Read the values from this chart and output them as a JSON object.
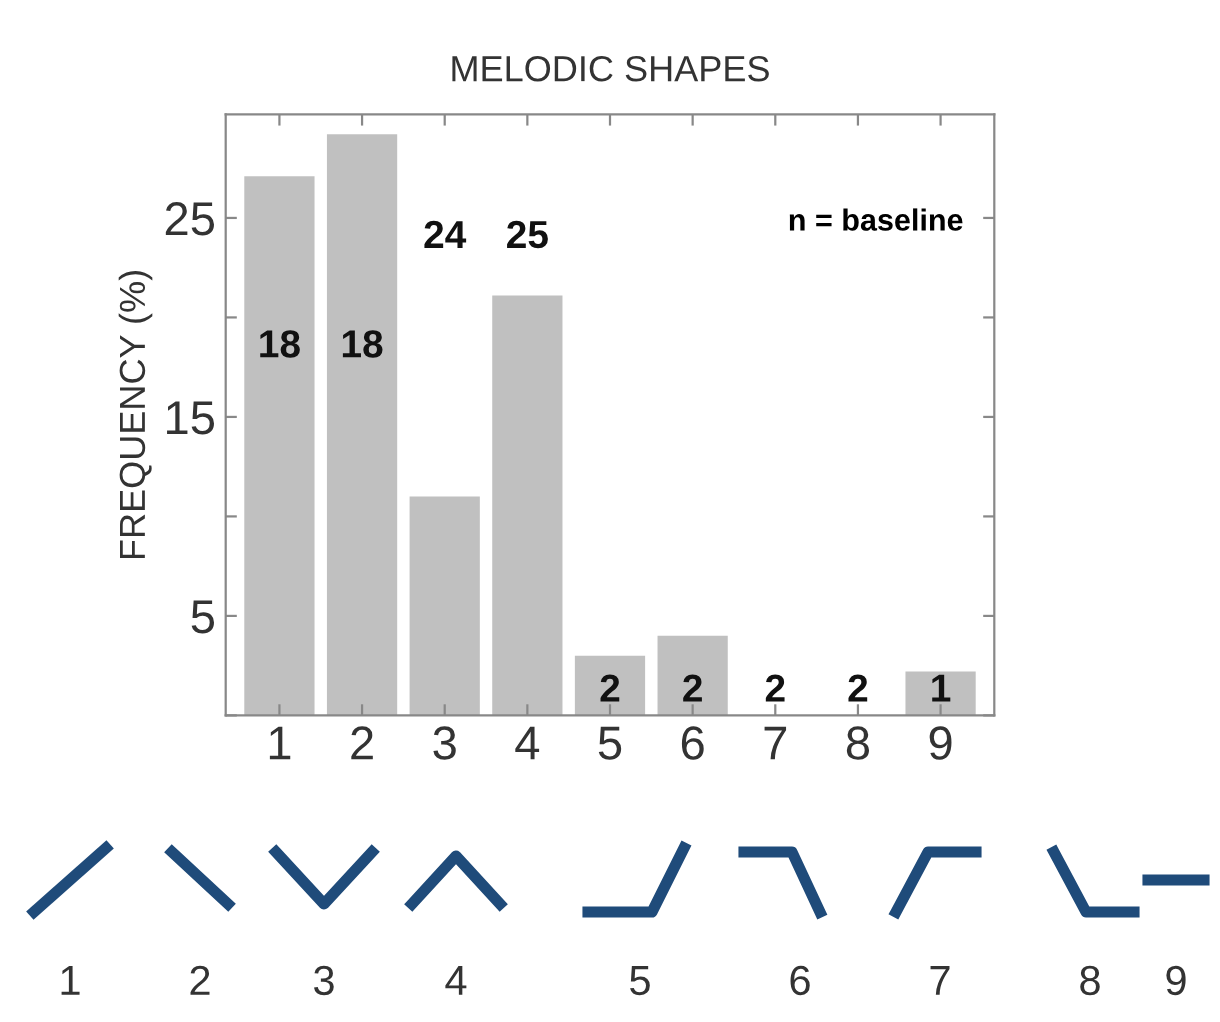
{
  "chart_data": {
    "type": "bar",
    "title": "MELODIC SHAPES",
    "ylabel": "FREQUENCY (%)",
    "categories": [
      "1",
      "2",
      "3",
      "4",
      "5",
      "6",
      "7",
      "8",
      "9"
    ],
    "values": [
      27.1,
      29.2,
      11,
      21.1,
      3,
      4,
      0,
      0,
      2.2
    ],
    "color": "#c0c0c0",
    "ylim": [
      0,
      30.2
    ],
    "yticks": [
      {
        "value": 0,
        "label": null
      },
      5,
      {
        "value": 10,
        "label": null
      },
      15,
      {
        "value": 20,
        "label": null
      },
      25
    ],
    "grid": false,
    "legend": false,
    "annotations": [
      "18",
      "18",
      "24",
      "25",
      "2",
      "2",
      "2",
      "2",
      "1",
      "n = baseline",
      "1",
      "2",
      "3",
      "4",
      "5",
      "6",
      "7",
      "8",
      "9"
    ]
  }
}
